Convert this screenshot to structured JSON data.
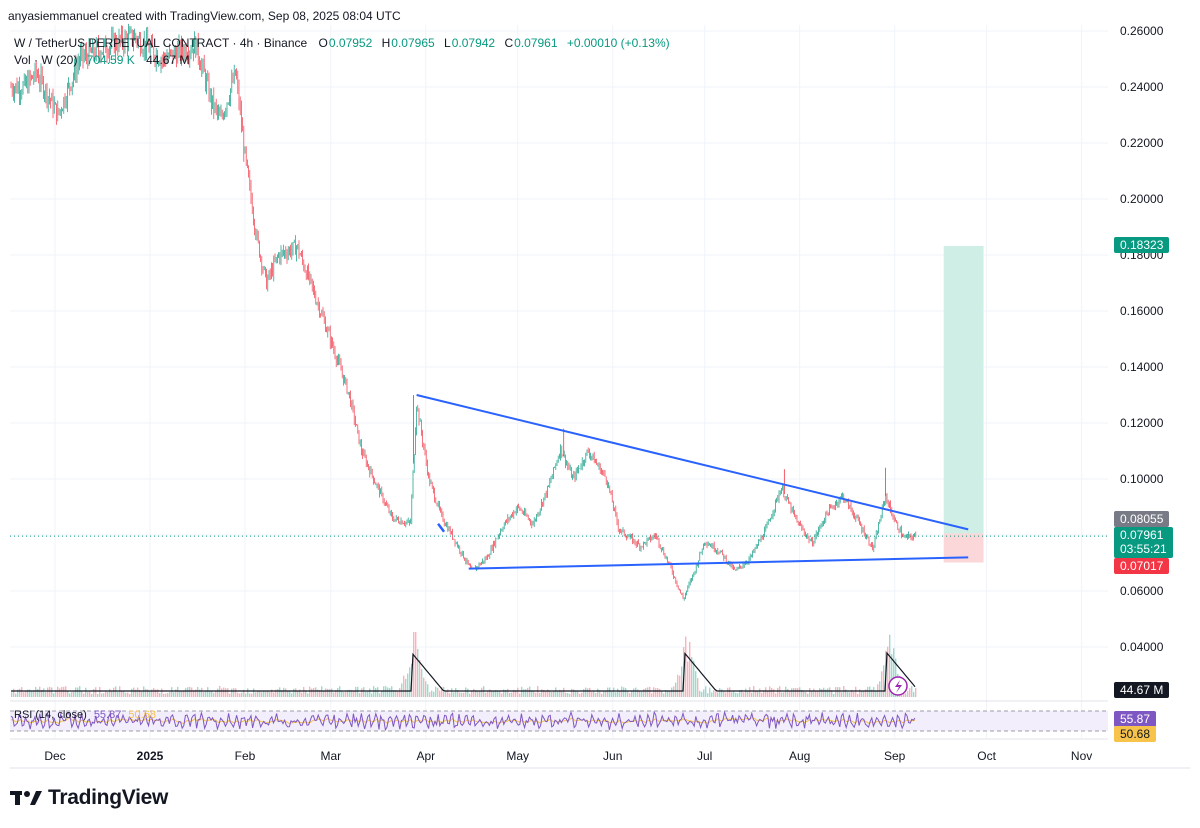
{
  "header": {
    "attribution": "anyasiemmanuel created with TradingView.com, Sep 08, 2025 08:04 UTC"
  },
  "legend": {
    "symbol": "W / TetherUS PERPETUAL CONTRACT · 4h · Binance",
    "open_label": "O",
    "open": "0.07952",
    "high_label": "H",
    "high": "0.07965",
    "low_label": "L",
    "low": "0.07942",
    "close_label": "C",
    "close": "0.07961",
    "change": "+0.00010 (+0.13%)",
    "volume_label": "Vol · W (20)",
    "volume": "704.59 K",
    "volume_ma": "44.67 M"
  },
  "rsi_legend": {
    "label": "RSI (14, close)",
    "value": "55.87",
    "ma": "50.68"
  },
  "badges": {
    "target": "0.18323",
    "entry": "0.08055",
    "last": "0.07961",
    "countdown": "03:55:21",
    "stop": "0.07017",
    "volume_ma": "44.67 M",
    "rsi": "55.87",
    "rsi_ma": "50.68"
  },
  "colors": {
    "up": "#089981",
    "down": "#f23645",
    "trendline": "#2962ff",
    "target_zone": "#cfeee6",
    "stop_zone": "#fbd7da",
    "rsi": "#7e57c2",
    "rsi_ma": "#f7c34a",
    "grid": "#f0f3fa"
  },
  "brand": "TradingView",
  "chart_data": {
    "type": "candlestick",
    "timeframe": "4h",
    "y_axis": {
      "ticks": [
        0.26,
        0.24,
        0.22,
        0.2,
        0.18,
        0.16,
        0.14,
        0.12,
        0.1,
        0.08,
        0.06,
        0.04
      ],
      "tick_labels": [
        "0.26000",
        "0.24000",
        "0.22000",
        "0.20000",
        "0.18000",
        "0.16000",
        "0.14000",
        "0.12000",
        "0.10000",
        "0.08000",
        "0.06000",
        "0.04000"
      ]
    },
    "x_axis": {
      "ticks": [
        "2024-12-01",
        "2025-01-01",
        "2025-02-01",
        "2025-03-01",
        "2025-04-01",
        "2025-05-01",
        "2025-06-01",
        "2025-07-01",
        "2025-08-01",
        "2025-09-01",
        "2025-10-01",
        "2025-11-01"
      ],
      "tick_labels": [
        "Dec",
        "2025",
        "Feb",
        "Mar",
        "Apr",
        "May",
        "Jun",
        "Jul",
        "Aug",
        "Sep",
        "Oct",
        "Nov"
      ]
    },
    "price_path": [
      {
        "date": "2024-11-21",
        "price": 0.24
      },
      {
        "date": "2024-11-25",
        "price": 0.245
      },
      {
        "date": "2024-12-02",
        "price": 0.23
      },
      {
        "date": "2024-12-09",
        "price": 0.25
      },
      {
        "date": "2024-12-19",
        "price": 0.255
      },
      {
        "date": "2024-12-27",
        "price": 0.258
      },
      {
        "date": "2025-01-05",
        "price": 0.25
      },
      {
        "date": "2025-01-16",
        "price": 0.255
      },
      {
        "date": "2025-01-21",
        "price": 0.235
      },
      {
        "date": "2025-01-24",
        "price": 0.228
      },
      {
        "date": "2025-01-29",
        "price": 0.245
      },
      {
        "date": "2025-02-01",
        "price": 0.215
      },
      {
        "date": "2025-02-05",
        "price": 0.185
      },
      {
        "date": "2025-02-08",
        "price": 0.17
      },
      {
        "date": "2025-02-12",
        "price": 0.18
      },
      {
        "date": "2025-02-18",
        "price": 0.183
      },
      {
        "date": "2025-02-25",
        "price": 0.162
      },
      {
        "date": "2025-03-03",
        "price": 0.143
      },
      {
        "date": "2025-03-07",
        "price": 0.13
      },
      {
        "date": "2025-03-11",
        "price": 0.11
      },
      {
        "date": "2025-03-15",
        "price": 0.1
      },
      {
        "date": "2025-03-21",
        "price": 0.086
      },
      {
        "date": "2025-03-27",
        "price": 0.084
      },
      {
        "date": "2025-03-29",
        "price": 0.127
      },
      {
        "date": "2025-04-02",
        "price": 0.1
      },
      {
        "date": "2025-04-06",
        "price": 0.087
      },
      {
        "date": "2025-04-12",
        "price": 0.075
      },
      {
        "date": "2025-04-16",
        "price": 0.067
      },
      {
        "date": "2025-04-21",
        "price": 0.072
      },
      {
        "date": "2025-04-26",
        "price": 0.083
      },
      {
        "date": "2025-05-01",
        "price": 0.09
      },
      {
        "date": "2025-05-06",
        "price": 0.084
      },
      {
        "date": "2025-05-11",
        "price": 0.097
      },
      {
        "date": "2025-05-15",
        "price": 0.111
      },
      {
        "date": "2025-05-19",
        "price": 0.1
      },
      {
        "date": "2025-05-24",
        "price": 0.11
      },
      {
        "date": "2025-05-30",
        "price": 0.1
      },
      {
        "date": "2025-06-03",
        "price": 0.082
      },
      {
        "date": "2025-06-10",
        "price": 0.076
      },
      {
        "date": "2025-06-15",
        "price": 0.08
      },
      {
        "date": "2025-06-20",
        "price": 0.068
      },
      {
        "date": "2025-06-24",
        "price": 0.057
      },
      {
        "date": "2025-06-28",
        "price": 0.068
      },
      {
        "date": "2025-07-01",
        "price": 0.078
      },
      {
        "date": "2025-07-06",
        "price": 0.074
      },
      {
        "date": "2025-07-11",
        "price": 0.067
      },
      {
        "date": "2025-07-16",
        "price": 0.072
      },
      {
        "date": "2025-07-21",
        "price": 0.082
      },
      {
        "date": "2025-07-26",
        "price": 0.097
      },
      {
        "date": "2025-07-31",
        "price": 0.085
      },
      {
        "date": "2025-08-05",
        "price": 0.077
      },
      {
        "date": "2025-08-10",
        "price": 0.088
      },
      {
        "date": "2025-08-15",
        "price": 0.094
      },
      {
        "date": "2025-08-20",
        "price": 0.085
      },
      {
        "date": "2025-08-25",
        "price": 0.075
      },
      {
        "date": "2025-08-29",
        "price": 0.094
      },
      {
        "date": "2025-09-01",
        "price": 0.085
      },
      {
        "date": "2025-09-04",
        "price": 0.079
      },
      {
        "date": "2025-09-08",
        "price": 0.0796
      }
    ],
    "trendlines": [
      {
        "from": {
          "date": "2025-03-29",
          "price": 0.13
        },
        "to": {
          "date": "2025-09-25",
          "price": 0.082
        }
      },
      {
        "from": {
          "date": "2025-04-15",
          "price": 0.068
        },
        "to": {
          "date": "2025-09-25",
          "price": 0.072
        }
      }
    ],
    "long_position": {
      "start": "2025-09-17",
      "end": "2025-09-30",
      "target": 0.18323,
      "entry": 0.08055,
      "stop": 0.07017
    },
    "volume_spikes": [
      "2025-03-28",
      "2025-06-25",
      "2025-08-30"
    ],
    "rsi": {
      "length": 14,
      "last": 55.87,
      "ma": 50.68,
      "bands": [
        70,
        30
      ]
    }
  }
}
